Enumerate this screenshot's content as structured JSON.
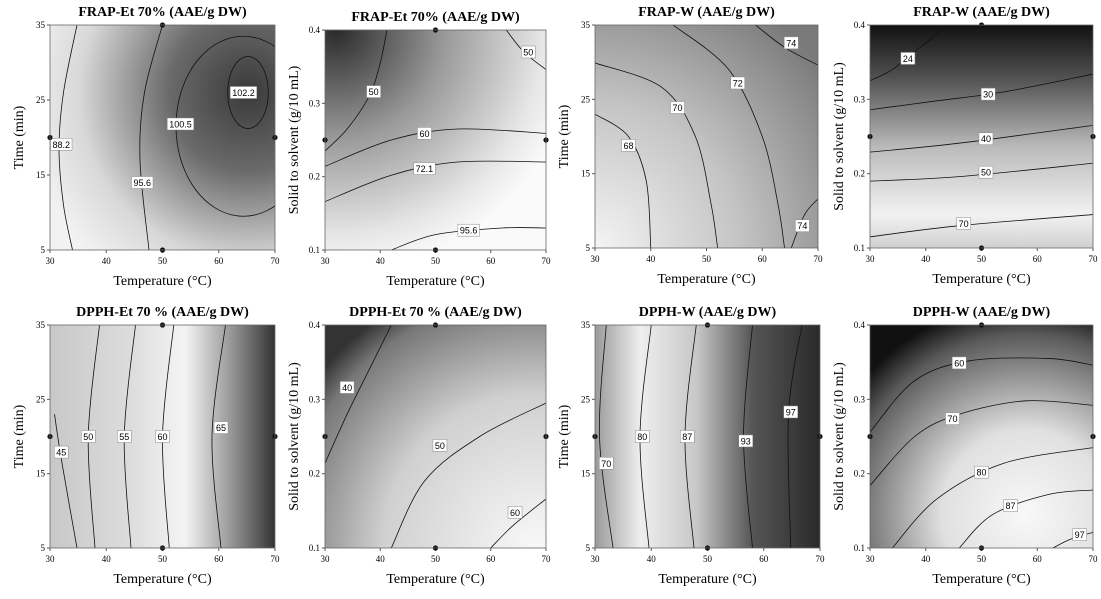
{
  "chart_data": [
    {
      "type": "contour",
      "title": "FRAP-Et 70% (AAE/g DW)",
      "x_label": "Temperature (°C)",
      "y_label": "Time (min)",
      "xlim": [
        30,
        70
      ],
      "xticks": [
        30,
        40,
        50,
        60,
        70
      ],
      "ylim": [
        5,
        35
      ],
      "yticks": [
        5,
        15,
        25,
        35
      ],
      "contour_levels": [
        88.2,
        95.6,
        100.5,
        102.2
      ],
      "points": {
        "x": [
          30,
          50,
          70,
          50
        ],
        "y": [
          20,
          35,
          20,
          5
        ]
      }
    },
    {
      "type": "contour",
      "title": "FRAP-Et 70% (AAE/g DW)",
      "x_label": "Temperature (°C)",
      "y_label": "Solid to solvent (g/10 mL)",
      "xlim": [
        30,
        70
      ],
      "xticks": [
        30,
        40,
        50,
        60,
        70
      ],
      "ylim": [
        0.1,
        0.4
      ],
      "yticks": [
        0.1,
        0.2,
        0.3,
        0.4
      ],
      "contour_levels": [
        50,
        50,
        60,
        72.1,
        95.6
      ],
      "points": {
        "x": [
          30,
          50,
          70,
          50
        ],
        "y": [
          0.25,
          0.4,
          0.25,
          0.1
        ]
      }
    },
    {
      "type": "contour",
      "title": "FRAP-W (AAE/g DW)",
      "x_label": "Temperature (°C)",
      "y_label": "Time (min)",
      "xlim": [
        30,
        70
      ],
      "xticks": [
        30,
        40,
        50,
        60,
        70
      ],
      "ylim": [
        5,
        35
      ],
      "yticks": [
        5,
        15,
        25,
        35
      ],
      "contour_levels": [
        74,
        72,
        70,
        68,
        74
      ],
      "points": {
        "x": [],
        "y": []
      }
    },
    {
      "type": "contour",
      "title": "FRAP-W (AAE/g DW)",
      "x_label": "Temperature (°C)",
      "y_label": "Solid to solvent (g/10 mL)",
      "xlim": [
        30,
        70
      ],
      "xticks": [
        30,
        40,
        50,
        60,
        70
      ],
      "ylim": [
        0.1,
        0.4
      ],
      "yticks": [
        0.1,
        0.2,
        0.3,
        0.4
      ],
      "contour_levels": [
        24,
        30,
        40,
        50,
        70
      ],
      "points": {
        "x": [
          30,
          50,
          70,
          50
        ],
        "y": [
          0.25,
          0.4,
          0.25,
          0.1
        ]
      }
    },
    {
      "type": "contour",
      "title": "DPPH-Et 70 % (AAE/g DW)",
      "x_label": "Temperature (°C)",
      "y_label": "Time (min)",
      "xlim": [
        30,
        70
      ],
      "xticks": [
        30,
        40,
        50,
        60,
        70
      ],
      "ylim": [
        5,
        35
      ],
      "yticks": [
        5,
        15,
        25,
        35
      ],
      "contour_levels": [
        45,
        50,
        55,
        60,
        65
      ],
      "points": {
        "x": [
          30,
          50,
          70,
          50
        ],
        "y": [
          20,
          35,
          20,
          5
        ]
      }
    },
    {
      "type": "contour",
      "title": "DPPH-Et 70 % (AAE/g DW)",
      "x_label": "Temperature (°C)",
      "y_label": "Solid to solvent (g/10 mL)",
      "xlim": [
        30,
        70
      ],
      "xticks": [
        30,
        40,
        50,
        60,
        70
      ],
      "ylim": [
        0.1,
        0.4
      ],
      "yticks": [
        0.1,
        0.2,
        0.3,
        0.4
      ],
      "contour_levels": [
        40,
        50,
        60
      ],
      "points": {
        "x": [
          30,
          50,
          70,
          50
        ],
        "y": [
          0.25,
          0.4,
          0.25,
          0.1
        ]
      }
    },
    {
      "type": "contour",
      "title": "DPPH-W (AAE/g DW)",
      "x_label": "Temperature (°C)",
      "y_label": "Time (min)",
      "xlim": [
        30,
        70
      ],
      "xticks": [
        30,
        40,
        50,
        60,
        70
      ],
      "ylim": [
        5,
        35
      ],
      "yticks": [
        5,
        15,
        25,
        35
      ],
      "contour_levels": [
        70,
        80,
        87,
        93,
        97
      ],
      "points": {
        "x": [
          30,
          50,
          70,
          50
        ],
        "y": [
          20,
          35,
          20,
          5
        ]
      }
    },
    {
      "type": "contour",
      "title": "DPPH-W (AAE/g DW)",
      "x_label": "Temperature (°C)",
      "y_label": "Solid to solvent (g/10 mL)",
      "xlim": [
        30,
        70
      ],
      "xticks": [
        30,
        40,
        50,
        60,
        70
      ],
      "ylim": [
        0.1,
        0.4
      ],
      "yticks": [
        0.1,
        0.2,
        0.3,
        0.4
      ],
      "contour_levels": [
        60,
        70,
        80,
        87,
        97
      ],
      "points": {
        "x": [
          30,
          50,
          70,
          50
        ],
        "y": [
          0.25,
          0.4,
          0.25,
          0.1
        ]
      }
    }
  ]
}
